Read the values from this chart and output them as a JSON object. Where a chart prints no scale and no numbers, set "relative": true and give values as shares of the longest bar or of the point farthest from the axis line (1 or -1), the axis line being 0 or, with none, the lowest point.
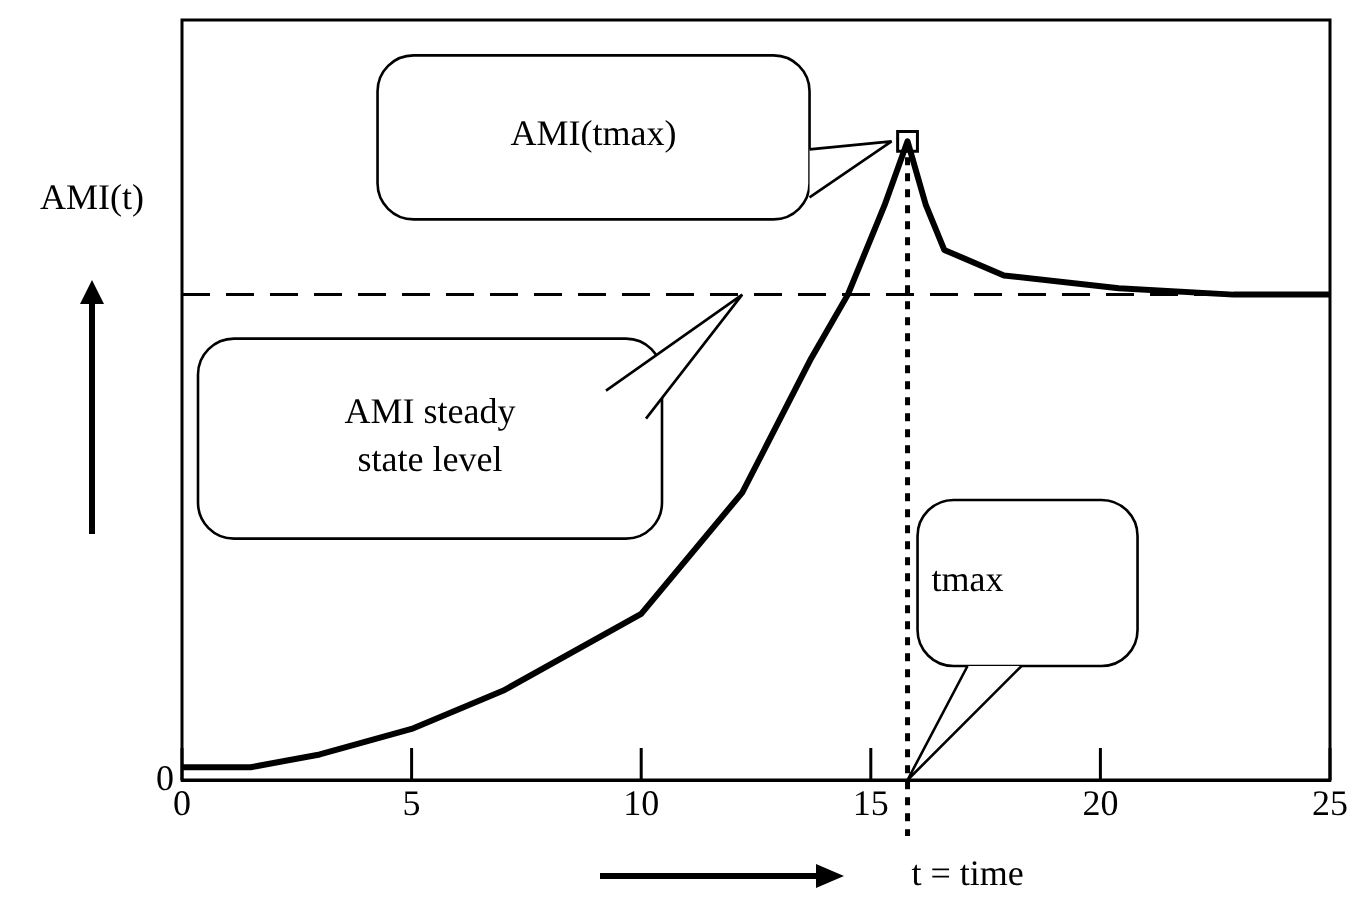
{
  "chart_data": {
    "type": "line",
    "relative": true,
    "xlabel": "t = time",
    "ylabel": "AMI(t)",
    "xlim": [
      0,
      25
    ],
    "xticks": [
      0,
      5,
      10,
      15,
      20,
      25
    ],
    "series": [
      {
        "color": "#000000",
        "x": [
          0,
          1.5,
          3,
          5,
          7,
          10,
          12.2,
          13.7,
          14.5,
          15.3,
          15.8,
          16.2,
          16.6,
          17.9,
          20.4,
          22.9,
          25
        ],
        "values": [
          0.02,
          0.02,
          0.04,
          0.08,
          0.14,
          0.26,
          0.45,
          0.66,
          0.76,
          0.9,
          1.0,
          0.9,
          0.83,
          0.79,
          0.77,
          0.76,
          0.76
        ]
      },
      {
        "type": "scatter",
        "marker": "square",
        "color": "#000000",
        "x": [
          15.8
        ],
        "values": [
          1.0
        ]
      }
    ],
    "ref_lines": [
      {
        "axis": "y",
        "value": 0.76,
        "label": "AMI steady state level",
        "line_style": "dashed",
        "color": "#000000"
      },
      {
        "axis": "x",
        "value": 15.8,
        "label": "tmax",
        "line_style": "dotted",
        "color": "#000000"
      }
    ],
    "annotations": [
      "AMI(tmax)",
      "0"
    ],
    "marker": "none",
    "line_style": "solid",
    "grid": false,
    "legend": false
  }
}
